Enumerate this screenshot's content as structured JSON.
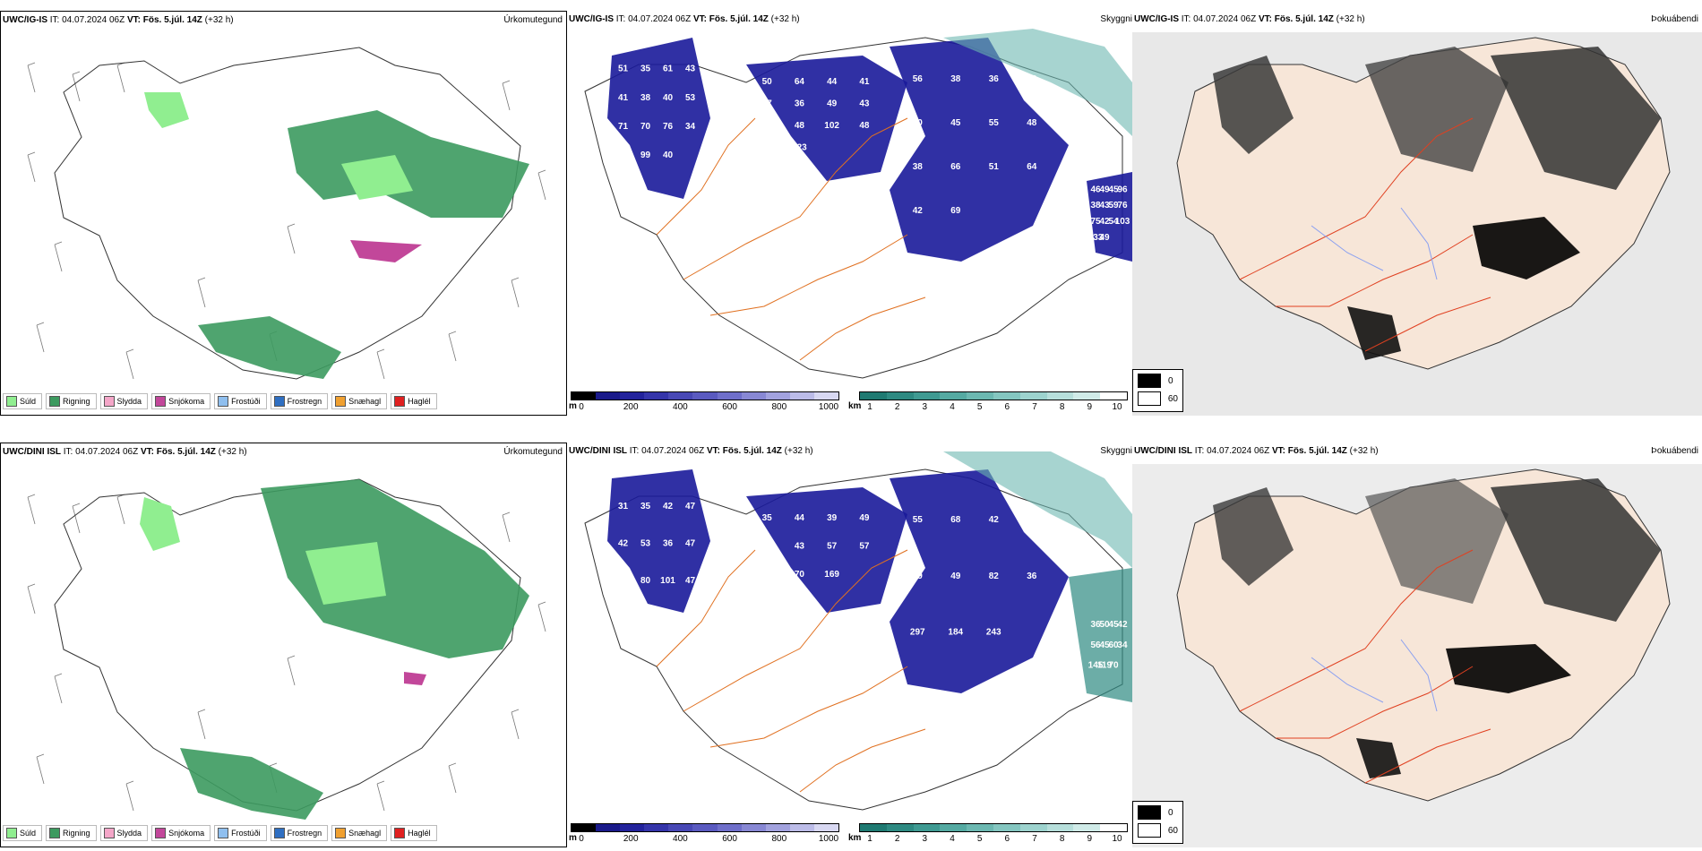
{
  "rows": [
    {
      "model": "UWC/IG-IS",
      "it_label": "IT:",
      "it_value": "04.07.2024 06Z",
      "vt_label": "VT:",
      "vt_value": "Fös. 5.júl. 14Z",
      "lead": "(+32 h)",
      "cloud_numbers": [
        "51",
        "50",
        "56",
        "46",
        "35",
        "64",
        "38",
        "49",
        "61",
        "44",
        "36",
        "45",
        "43",
        "41",
        "42",
        "96",
        "41",
        "37",
        "40",
        "38",
        "38",
        "36",
        "45",
        "43",
        "40",
        "49",
        "55",
        "59",
        "53",
        "43",
        "48",
        "76",
        "71",
        "45",
        "38",
        "75",
        "70",
        "48",
        "66",
        "42",
        "76",
        "102",
        "51",
        "54",
        "34",
        "48",
        "64",
        "103",
        "10",
        "137",
        "42",
        "133",
        "99",
        "623",
        "69",
        "49",
        "40"
      ]
    },
    {
      "model": "UWC/DINI ISL",
      "it_label": "IT:",
      "it_value": "04.07.2024 06Z",
      "vt_label": "VT:",
      "vt_value": "Fös. 5.júl. 14Z",
      "lead": "(+32 h)",
      "cloud_numbers": [
        "31",
        "35",
        "55",
        "36",
        "35",
        "44",
        "68",
        "50",
        "42",
        "39",
        "42",
        "45",
        "47",
        "49",
        "42",
        "42",
        "42",
        "46",
        "59",
        "56",
        "53",
        "43",
        "49",
        "45",
        "36",
        "57",
        "82",
        "60",
        "47",
        "57",
        "36",
        "34",
        "120",
        "51",
        "297",
        "145",
        "80",
        "70",
        "184",
        "119",
        "101",
        "169",
        "243",
        "70",
        "47"
      ]
    }
  ],
  "panel_titles": {
    "precip": "Úrkomutegund",
    "cloud": "Skyggni",
    "fog": "Þokuábendi"
  },
  "precip_legend": [
    {
      "label": "Súld",
      "color": "#90ee90"
    },
    {
      "label": "Rigning",
      "color": "#3c9a5f"
    },
    {
      "label": "Slydda",
      "color": "#f4a6c8"
    },
    {
      "label": "Snjókoma",
      "color": "#c2479a"
    },
    {
      "label": "Frostúði",
      "color": "#8fbfef"
    },
    {
      "label": "Frostregn",
      "color": "#2f6fc2"
    },
    {
      "label": "Snæhagl",
      "color": "#f0a030"
    },
    {
      "label": "Haglél",
      "color": "#e02020"
    }
  ],
  "ceiling_scale": {
    "unit": "m",
    "ticks": [
      "0",
      "200",
      "400",
      "600",
      "800",
      "1000"
    ],
    "colors": [
      "#000000",
      "#1a1a8a",
      "#23239c",
      "#3535aa",
      "#4848b5",
      "#5a5ac0",
      "#6f6fca",
      "#8888d4",
      "#a2a2de",
      "#bcbce8",
      "#d8d8f2"
    ]
  },
  "visibility_scale": {
    "unit": "km",
    "ticks": [
      "1",
      "2",
      "3",
      "4",
      "5",
      "6",
      "7",
      "8",
      "9",
      "10"
    ],
    "colors": [
      "#1f7a72",
      "#2e8a82",
      "#3f9a92",
      "#55aaa2",
      "#6cb8b1",
      "#84c6c0",
      "#9dd3ce",
      "#b7dfdb",
      "#d0ebe8",
      "#ffffff"
    ]
  },
  "fog_legend": [
    {
      "label": "0",
      "color": "#000000"
    },
    {
      "label": "60",
      "color": "#ffffff"
    }
  ]
}
